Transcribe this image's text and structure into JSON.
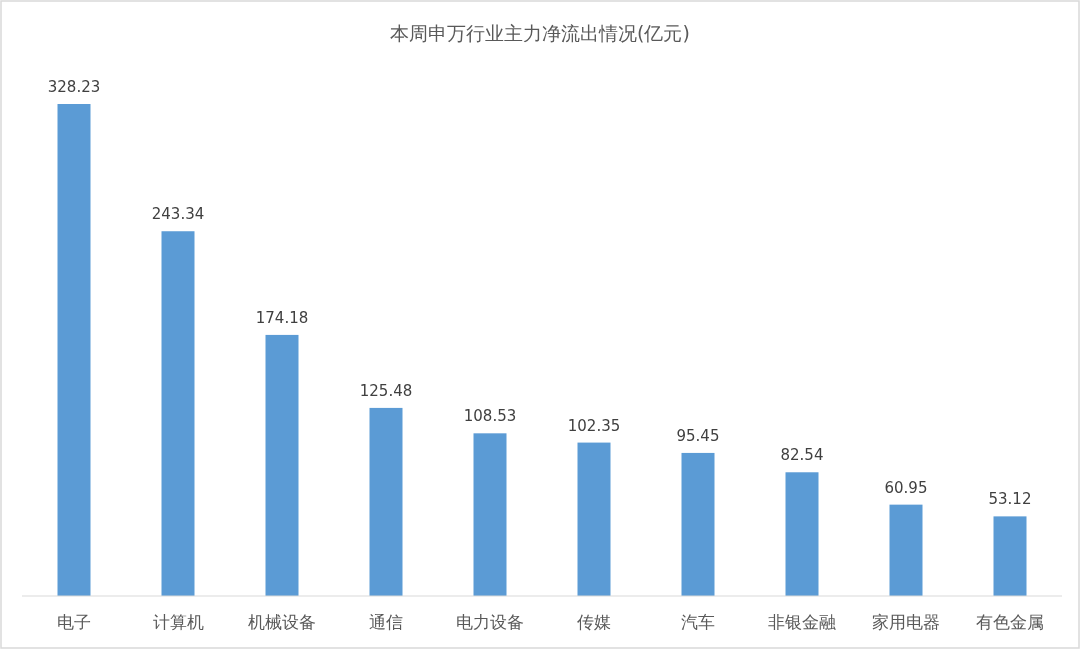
{
  "chart_data": {
    "type": "bar",
    "title": "本周申万行业主力净流出情况(亿元)",
    "categories": [
      "电子",
      "计算机",
      "机械设备",
      "通信",
      "电力设备",
      "传媒",
      "汽车",
      "非银金融",
      "家用电器",
      "有色金属"
    ],
    "values": [
      328.23,
      243.34,
      174.18,
      125.48,
      108.53,
      102.35,
      95.45,
      82.54,
      60.95,
      53.12
    ],
    "color": "#5b9bd5",
    "data_labels": true
  }
}
